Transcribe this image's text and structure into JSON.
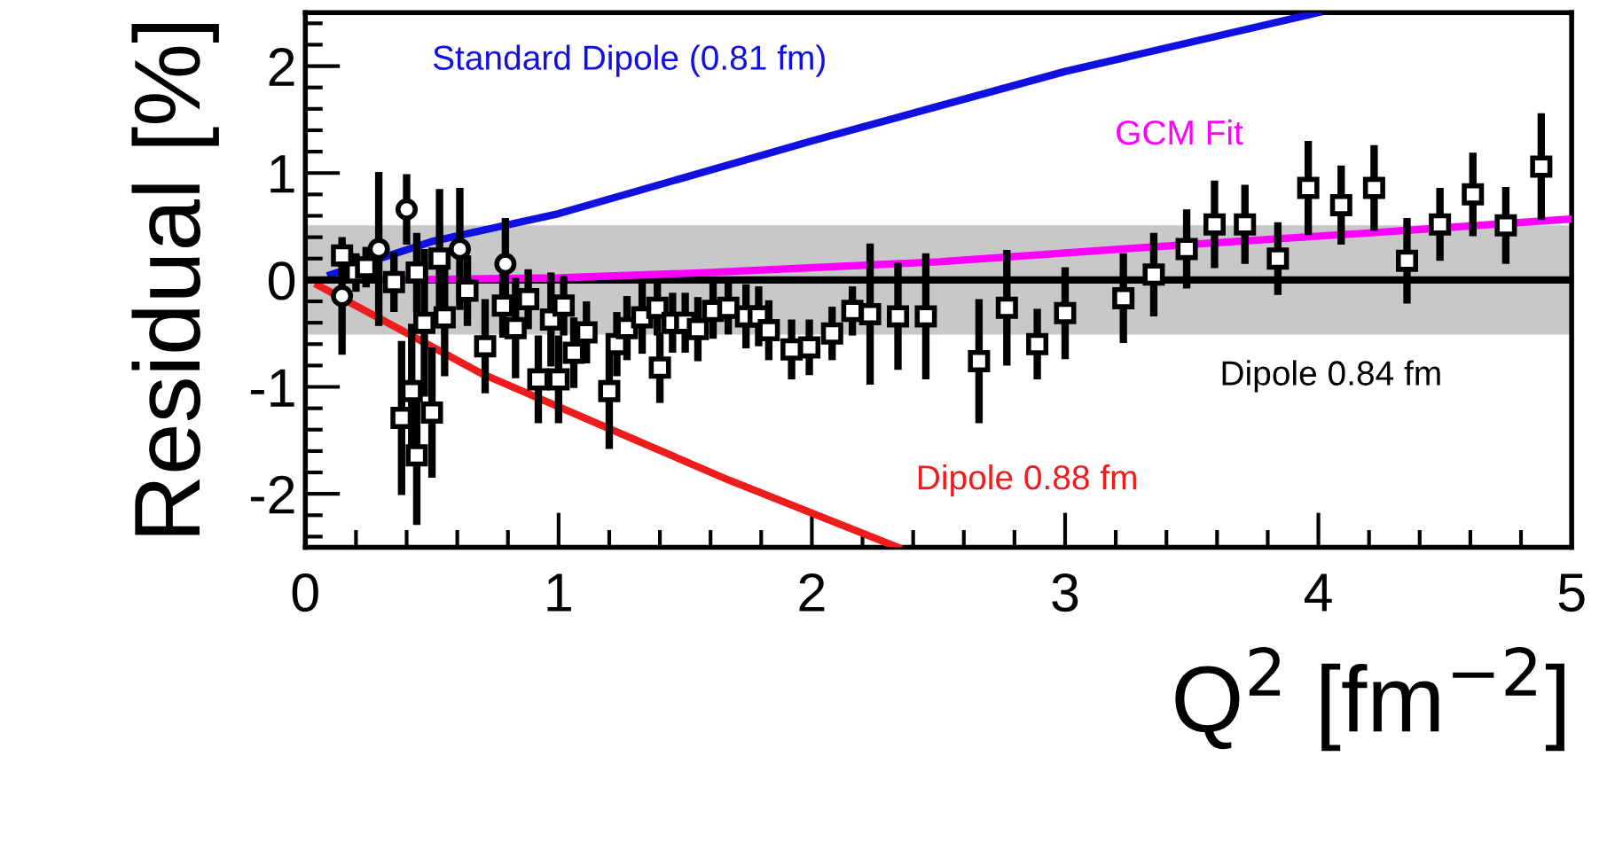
{
  "chart_data": {
    "type": "scatter",
    "xlabel": "Q$^{2}$ [fm$^{−2}$]",
    "ylabel": "Residual [%]",
    "xlim": [
      0,
      5
    ],
    "ylim": [
      -2.5,
      2.5
    ],
    "xticks": [
      0,
      1,
      2,
      3,
      4,
      5
    ],
    "yticks": [
      -2,
      -1,
      0,
      1,
      2
    ],
    "marker": "square",
    "grid": false,
    "bands": [
      {
        "axis": "y",
        "from": -0.5,
        "to": 0.5,
        "color": "#c8c8c8"
      }
    ],
    "series": [
      {
        "type": "line",
        "marker": "none",
        "name": "Standard Dipole (0.81 fm)",
        "color": "#1010e0",
        "x": [
          0.1,
          0.5,
          1,
          2,
          3,
          4
        ],
        "values": [
          0.05,
          0.36,
          0.62,
          1.3,
          1.95,
          2.5
        ]
      },
      {
        "type": "line",
        "marker": "none",
        "name": "Dipole 0.88 fm",
        "color": "#ee1c1c",
        "x": [
          0.05,
          0.7,
          1.2,
          1.67,
          2.34
        ],
        "values": [
          -0.05,
          -0.88,
          -1.39,
          -1.87,
          -2.5
        ]
      },
      {
        "type": "line",
        "marker": "none",
        "name": "Dipole 0.84 fm",
        "color": "#000000",
        "x": [
          0,
          5
        ],
        "values": [
          0,
          0
        ]
      },
      {
        "type": "line",
        "marker": "none",
        "name": "GCM Fit",
        "color": "#ff00ff",
        "x": [
          0.3,
          1,
          1.6,
          2.5,
          3.35,
          4.2,
          5
        ],
        "values": [
          0.0,
          0.02,
          0.07,
          0.17,
          0.31,
          0.44,
          0.57
        ]
      },
      {
        "color": "#000000",
        "x": [
          0.145,
          0.2,
          0.24,
          0.35,
          0.38,
          0.42,
          0.44,
          0.44,
          0.47,
          0.5,
          0.53,
          0.55,
          0.64,
          0.71,
          0.78,
          0.83,
          0.88,
          0.92,
          0.97,
          1.0,
          1.02,
          1.06,
          1.11,
          1.2,
          1.23,
          1.27,
          1.33,
          1.39,
          1.4,
          1.45,
          1.5,
          1.55,
          1.61,
          1.67,
          1.74,
          1.79,
          1.83,
          1.92,
          1.99,
          2.08,
          2.16,
          2.23,
          2.34,
          2.45,
          2.66,
          2.77,
          2.89,
          3.0,
          3.23,
          3.35,
          3.48,
          3.59,
          3.71,
          3.84,
          3.96,
          4.09,
          4.22,
          4.35,
          4.48,
          4.61,
          4.74,
          4.88
        ],
        "values": [
          0.23,
          0.07,
          0.12,
          -0.02,
          -1.29,
          -1.04,
          -1.64,
          0.07,
          -0.4,
          -1.24,
          0.2,
          -0.35,
          -0.1,
          -0.62,
          -0.24,
          -0.45,
          -0.18,
          -0.93,
          -0.37,
          -0.93,
          -0.24,
          -0.68,
          -0.49,
          -1.04,
          -0.6,
          -0.45,
          -0.35,
          -0.26,
          -0.82,
          -0.4,
          -0.4,
          -0.46,
          -0.29,
          -0.26,
          -0.34,
          -0.34,
          -0.47,
          -0.65,
          -0.63,
          -0.5,
          -0.29,
          -0.32,
          -0.34,
          -0.34,
          -0.76,
          -0.26,
          -0.6,
          -0.31,
          -0.17,
          0.05,
          0.29,
          0.52,
          0.52,
          0.2,
          0.86,
          0.7,
          0.86,
          0.18,
          0.52,
          0.8,
          0.51,
          1.06
        ],
        "errors": [
          0.11,
          0.18,
          0.19,
          0.28,
          0.72,
          0.63,
          0.65,
          0.37,
          0.69,
          0.61,
          0.65,
          0.55,
          0.33,
          0.44,
          0.3,
          0.47,
          0.28,
          0.41,
          0.44,
          0.41,
          0.28,
          0.33,
          0.29,
          0.54,
          0.3,
          0.3,
          0.34,
          0.26,
          0.33,
          0.28,
          0.28,
          0.3,
          0.26,
          0.25,
          0.3,
          0.28,
          0.28,
          0.28,
          0.26,
          0.25,
          0.23,
          0.66,
          0.5,
          0.59,
          0.58,
          0.54,
          0.33,
          0.43,
          0.42,
          0.39,
          0.37,
          0.41,
          0.37,
          0.34,
          0.44,
          0.37,
          0.4,
          0.4,
          0.34,
          0.39,
          0.36,
          0.5
        ]
      },
      {
        "color": "#000000",
        "marker": "circle",
        "x": [
          0.145,
          0.29,
          0.4,
          0.61,
          0.79
        ],
        "values": [
          -0.15,
          0.29,
          0.66,
          0.29,
          0.15
        ],
        "errors": [
          0.55,
          0.72,
          0.33,
          0.57,
          0.43
        ]
      }
    ]
  }
}
